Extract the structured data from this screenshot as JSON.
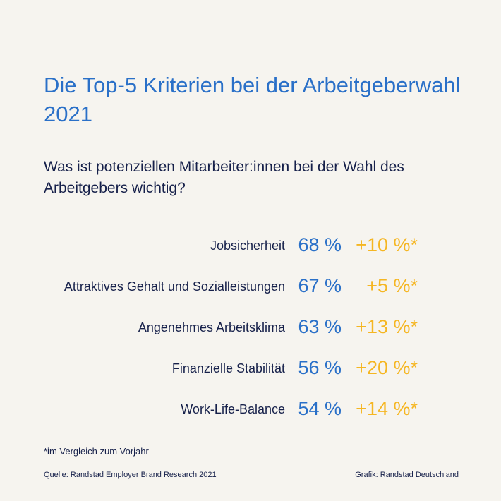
{
  "title": "Die Top-5 Kriterien bei der Arbeitgeberwahl 2021",
  "subtitle": "Was ist potenziellen Mitarbeiter:innen bei der Wahl des Arbeitgebers wichtig?",
  "colors": {
    "background": "#f6f4ef",
    "accent_blue": "#2a70c8",
    "accent_yellow": "#f5b622",
    "text_dark": "#16204a"
  },
  "rows": [
    {
      "label": "Jobsicherheit",
      "value": "68 %",
      "change": "+10 %*"
    },
    {
      "label": "Attraktives Gehalt und Sozialleistungen",
      "value": "67 %",
      "change": "+5 %*"
    },
    {
      "label": "Angenehmes Arbeitsklima",
      "value": "63 %",
      "change": "+13 %*"
    },
    {
      "label": "Finanzielle Stabilität",
      "value": "56 %",
      "change": "+20 %*"
    },
    {
      "label": "Work-Life-Balance",
      "value": "54 %",
      "change": "+14 %*"
    }
  ],
  "footnote": "*im Vergleich zum Vorjahr",
  "source": "Quelle: Randstad Employer Brand Research 2021",
  "credit": "Grafik: Randstad Deutschland"
}
